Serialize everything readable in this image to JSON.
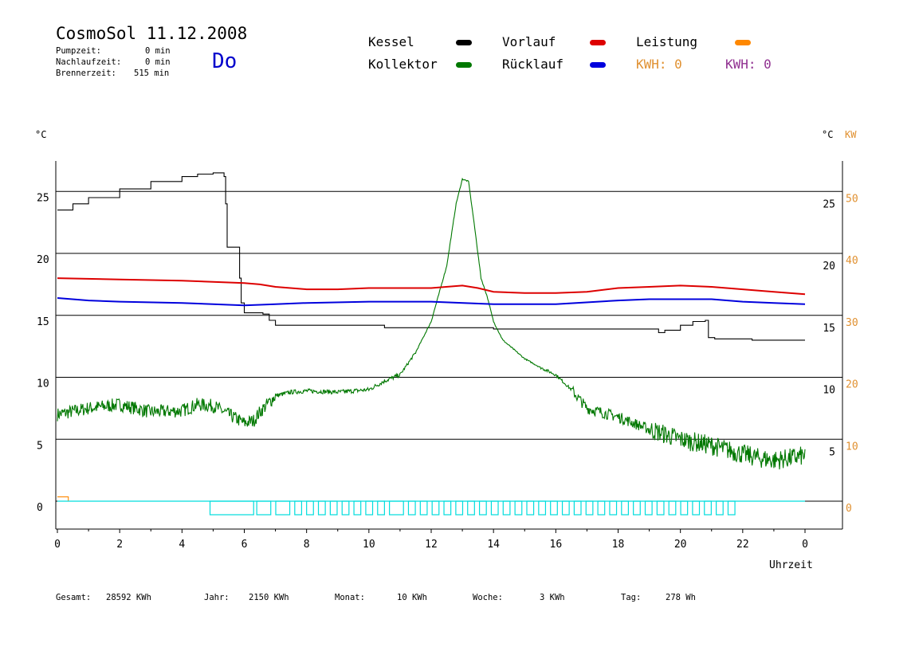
{
  "header": {
    "title": "CosmoSol 11.12.2008",
    "day": "Do",
    "pumpzeit_label": "Pumpzeit:",
    "pumpzeit_value": "0 min",
    "nachlaufzeit_label": "Nachlaufzeit:",
    "nachlaufzeit_value": "0 min",
    "brennerzeit_label": "Brennerzeit:",
    "brennerzeit_value": "515 min"
  },
  "legend": {
    "kessel": "Kessel",
    "kollektor": "Kollektor",
    "vorlauf": "Vorlauf",
    "ruecklauf": "Rücklauf",
    "leistung": "Leistung",
    "kwh1": "KWH: 0",
    "kwh2": "KWH: 0"
  },
  "colors": {
    "kessel": "#000000",
    "kollektor": "#007800",
    "vorlauf": "#dd0000",
    "ruecklauf": "#0000dd",
    "leistung": "#ff8800",
    "kwh1": "#e09030",
    "kwh2": "#903090",
    "pump": "#00dddd",
    "grid": "#000000"
  },
  "footer": {
    "gesamt_label": "Gesamt:",
    "gesamt_value": "28592 KWh",
    "jahr_label": "Jahr:",
    "jahr_value": "2150 KWh",
    "monat_label": "Monat:",
    "monat_value": "10 KWh",
    "woche_label": "Woche:",
    "woche_value": "3 KWh",
    "tag_label": "Tag:",
    "tag_value": "278 Wh"
  },
  "chart_data": {
    "type": "line",
    "xlabel": "Uhrzeit",
    "ylabel_left": "°C",
    "ylabel_right": "°C",
    "ylabel_right2": "KW",
    "x_ticks": [
      "0",
      "2",
      "4",
      "6",
      "8",
      "10",
      "12",
      "14",
      "16",
      "18",
      "20",
      "22",
      "0"
    ],
    "xlim": [
      0,
      24
    ],
    "ylim": [
      -2,
      27.5
    ],
    "y_ticks_left": [
      0,
      5,
      10,
      15,
      20,
      25
    ],
    "y_ticks_right": [
      5,
      10,
      15,
      20,
      25
    ],
    "y_ticks_kw": [
      0,
      10,
      20,
      30,
      40,
      50
    ],
    "grid": "horizontal",
    "series": [
      {
        "name": "Kessel",
        "key": "kessel",
        "x": [
          0,
          0.5,
          1,
          2,
          3,
          4,
          4.5,
          5,
          5.2,
          5.35,
          5.4,
          5.45,
          5.75,
          5.85,
          5.9,
          6.0,
          6.6,
          6.8,
          7.0,
          8,
          10,
          10.5,
          12,
          14,
          16,
          18,
          19.3,
          19.5,
          20,
          20.4,
          20.8,
          20.9,
          21.1,
          22,
          22.3,
          23,
          24
        ],
        "y": [
          23.5,
          24,
          24.5,
          25.2,
          25.8,
          26.2,
          26.4,
          26.5,
          26.5,
          26.2,
          24,
          20.5,
          20.5,
          18,
          16,
          15.2,
          15.1,
          14.6,
          14.2,
          14.2,
          14.2,
          14,
          14,
          13.9,
          13.9,
          13.9,
          13.6,
          13.8,
          14.2,
          14.5,
          14.6,
          13.2,
          13.1,
          13.1,
          13.0,
          13.0,
          13.0
        ]
      },
      {
        "name": "Kollektor",
        "key": "kollektor",
        "x": [
          0,
          1,
          2,
          3,
          4,
          4.5,
          5,
          5.5,
          6,
          6.3,
          6.5,
          7,
          7.5,
          8,
          9,
          10,
          10.5,
          11,
          11.5,
          12,
          12.5,
          12.8,
          13,
          13.2,
          13.4,
          13.6,
          13.8,
          14,
          14.3,
          15,
          15.5,
          16,
          16.5,
          17,
          18,
          19,
          20,
          21,
          22,
          22.5,
          23,
          23.6,
          24
        ],
        "y": [
          7,
          7.5,
          7.8,
          7.2,
          7.3,
          7.8,
          7.7,
          7.0,
          6.3,
          6.5,
          7.2,
          8.5,
          8.8,
          8.9,
          8.8,
          9.0,
          9.7,
          10.2,
          12.0,
          14.5,
          19.0,
          24.0,
          26.0,
          25.8,
          22.0,
          18.0,
          16.5,
          14.5,
          13.0,
          11.5,
          10.8,
          10.2,
          9.0,
          7.5,
          6.8,
          5.8,
          5.0,
          4.5,
          3.8,
          3.5,
          3.3,
          3.5,
          3.7
        ]
      },
      {
        "name": "Vorlauf",
        "key": "vorlauf",
        "x": [
          0,
          2,
          4,
          6,
          6.5,
          7,
          8,
          9,
          10,
          11,
          12,
          13,
          13.5,
          14,
          15,
          16,
          17,
          18,
          19,
          20,
          21,
          22,
          23,
          24
        ],
        "y": [
          18,
          17.9,
          17.8,
          17.6,
          17.5,
          17.3,
          17.1,
          17.1,
          17.2,
          17.2,
          17.2,
          17.4,
          17.2,
          16.9,
          16.8,
          16.8,
          16.9,
          17.2,
          17.3,
          17.4,
          17.3,
          17.1,
          16.9,
          16.7
        ]
      },
      {
        "name": "Rücklauf",
        "key": "ruecklauf",
        "x": [
          0,
          1,
          2,
          4,
          5,
          6,
          7,
          8,
          10,
          12,
          14,
          16,
          18,
          19,
          20,
          21,
          22,
          23,
          24
        ],
        "y": [
          16.4,
          16.2,
          16.1,
          16.0,
          15.9,
          15.8,
          15.9,
          16.0,
          16.1,
          16.1,
          15.9,
          15.9,
          16.2,
          16.3,
          16.3,
          16.3,
          16.1,
          16.0,
          15.9
        ]
      },
      {
        "name": "Leistung",
        "key": "leistung",
        "axis": "kw",
        "x": [
          0,
          0.35,
          0.35,
          24
        ],
        "y": [
          0.35,
          0.35,
          0,
          0
        ]
      }
    ],
    "pump_bar": {
      "start": 4.9,
      "end": 21.8,
      "note": "Pump on-periods drawn as cyan rectangles along the zero line"
    }
  }
}
